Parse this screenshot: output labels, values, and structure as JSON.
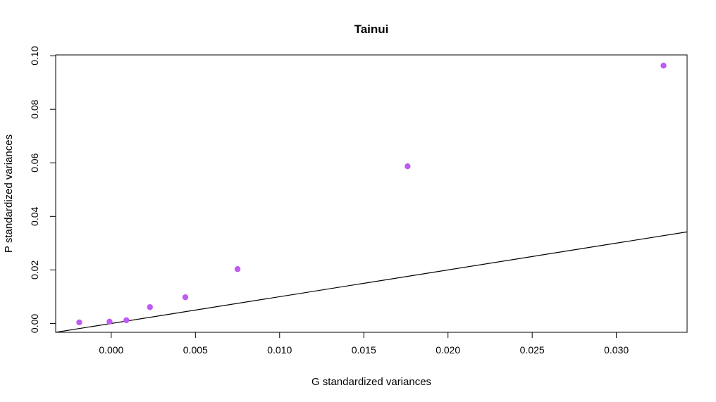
{
  "chart_data": {
    "type": "scatter",
    "title": "Tainui",
    "xlabel": "G standardized variances",
    "ylabel": "P standardized variances",
    "xlim": [
      -0.0033,
      0.0342
    ],
    "ylim": [
      -0.0033,
      0.1003
    ],
    "x_ticks": [
      0.0,
      0.005,
      0.01,
      0.015,
      0.02,
      0.025,
      0.03
    ],
    "x_tick_labels": [
      "0.000",
      "0.005",
      "0.010",
      "0.015",
      "0.020",
      "0.025",
      "0.030"
    ],
    "y_ticks": [
      0.0,
      0.02,
      0.04,
      0.06,
      0.08,
      0.1
    ],
    "y_tick_labels": [
      "0.00",
      "0.02",
      "0.04",
      "0.06",
      "0.08",
      "0.10"
    ],
    "grid": false,
    "legend": "none",
    "point_color": "#bf5af2",
    "line_color": "#000000",
    "points": [
      {
        "x": -0.0019,
        "y": 0.0004
      },
      {
        "x": -0.0001,
        "y": 0.0007
      },
      {
        "x": 0.0009,
        "y": 0.0012
      },
      {
        "x": 0.0023,
        "y": 0.0061
      },
      {
        "x": 0.0044,
        "y": 0.0098
      },
      {
        "x": 0.0075,
        "y": 0.0203
      },
      {
        "x": 0.0176,
        "y": 0.0587
      },
      {
        "x": 0.0328,
        "y": 0.0963
      }
    ],
    "reference_line": {
      "intercept": 0,
      "slope": 1
    }
  }
}
